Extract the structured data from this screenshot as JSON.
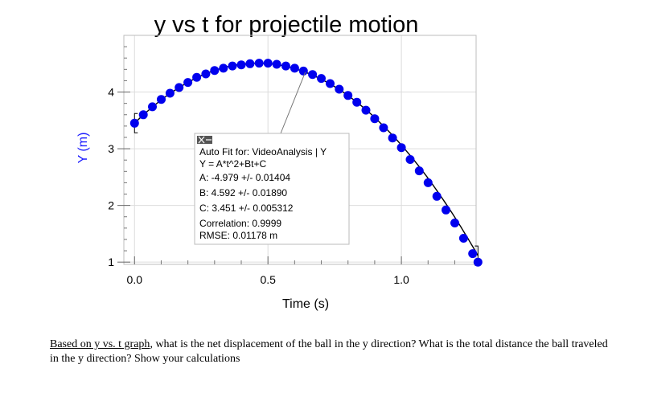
{
  "chart_data": {
    "type": "scatter",
    "title": "y vs t  for projectile motion",
    "xlabel": "Time (s)",
    "ylabel": "Y (m)",
    "xlim": [
      -0.04,
      1.28
    ],
    "ylim": [
      0.96,
      5.0
    ],
    "xticks": [
      "0.0",
      "0.5",
      "1.0"
    ],
    "yticks": [
      "1",
      "2",
      "3",
      "4"
    ],
    "grid": true,
    "series": [
      {
        "marker_color": "#0000ee",
        "points": [
          {
            "x": 0.0,
            "y": 3.45
          },
          {
            "x": 0.033,
            "y": 3.6
          },
          {
            "x": 0.067,
            "y": 3.74
          },
          {
            "x": 0.1,
            "y": 3.87
          },
          {
            "x": 0.133,
            "y": 3.98
          },
          {
            "x": 0.167,
            "y": 4.08
          },
          {
            "x": 0.2,
            "y": 4.17
          },
          {
            "x": 0.233,
            "y": 4.26
          },
          {
            "x": 0.267,
            "y": 4.32
          },
          {
            "x": 0.3,
            "y": 4.38
          },
          {
            "x": 0.333,
            "y": 4.42
          },
          {
            "x": 0.367,
            "y": 4.46
          },
          {
            "x": 0.4,
            "y": 4.48
          },
          {
            "x": 0.433,
            "y": 4.5
          },
          {
            "x": 0.467,
            "y": 4.51
          },
          {
            "x": 0.5,
            "y": 4.51
          },
          {
            "x": 0.533,
            "y": 4.49
          },
          {
            "x": 0.567,
            "y": 4.46
          },
          {
            "x": 0.6,
            "y": 4.42
          },
          {
            "x": 0.633,
            "y": 4.37
          },
          {
            "x": 0.667,
            "y": 4.31
          },
          {
            "x": 0.7,
            "y": 4.24
          },
          {
            "x": 0.733,
            "y": 4.15
          },
          {
            "x": 0.767,
            "y": 4.05
          },
          {
            "x": 0.8,
            "y": 3.94
          },
          {
            "x": 0.833,
            "y": 3.82
          },
          {
            "x": 0.867,
            "y": 3.68
          },
          {
            "x": 0.9,
            "y": 3.53
          },
          {
            "x": 0.933,
            "y": 3.37
          },
          {
            "x": 0.967,
            "y": 3.19
          },
          {
            "x": 1.0,
            "y": 3.02
          },
          {
            "x": 1.033,
            "y": 2.81
          },
          {
            "x": 1.067,
            "y": 2.61
          },
          {
            "x": 1.1,
            "y": 2.4
          },
          {
            "x": 1.133,
            "y": 2.16
          },
          {
            "x": 1.167,
            "y": 1.92
          },
          {
            "x": 1.2,
            "y": 1.69
          },
          {
            "x": 1.233,
            "y": 1.42
          },
          {
            "x": 1.267,
            "y": 1.15
          },
          {
            "x": 1.287,
            "y": 1.0
          }
        ]
      }
    ],
    "fit": {
      "model": "quadratic",
      "A": -4.979,
      "B": 4.592,
      "C": 3.451,
      "range": [
        0.0,
        1.287
      ],
      "box_lines": [
        "Auto Fit for: VideoAnalysis | Y",
        "Y = A*t^2+Bt+C",
        "A: -4.979 +/- 0.01404",
        "B: 4.592 +/- 0.01890",
        "C: 3.451 +/- 0.005312",
        "Correlation: 0.9999",
        "RMSE: 0.01178 m"
      ]
    }
  },
  "question": {
    "link_text": "Based on y vs. t graph",
    "text": ", what is the net displacement of the ball in the y direction? What is the total distance the ball traveled in the y direction? Show your calculations"
  }
}
